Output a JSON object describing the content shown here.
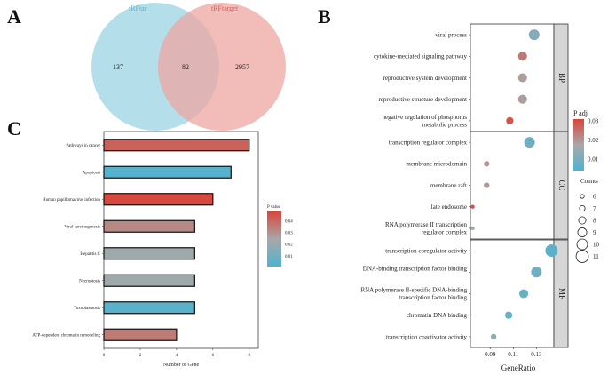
{
  "panels": {
    "a": "A",
    "b": "B",
    "c": "C"
  },
  "venn": {
    "left_label": "tRFtar",
    "right_label": "tRFtarget",
    "left_only": "137",
    "overlap": "82",
    "right_only": "2957",
    "colors": {
      "left": "#a7d8e6",
      "right": "#eea6a2",
      "left_text": "#5ab4d0",
      "right_text": "#d0625e"
    }
  },
  "chart_data": [
    {
      "id": "C",
      "type": "bar",
      "orientation": "horizontal",
      "categories": [
        "Pathways in cancer",
        "Apoptosis",
        "Human papillomavirus infection",
        "Viral carcinogenesis",
        "Hepatitis C",
        "Necroptosis",
        "Toxoplasmosis",
        "ATP-dependent chromatin remodeling"
      ],
      "values": [
        8,
        7,
        6,
        5,
        5,
        5,
        5,
        4
      ],
      "pvalues": [
        0.041,
        0.003,
        0.047,
        0.032,
        0.022,
        0.022,
        0.004,
        0.035
      ],
      "xlabel": "Number of Gene",
      "xlim": [
        0,
        8.5
      ],
      "xticks": [
        "0",
        "2",
        "4",
        "6",
        "8"
      ],
      "legend_title": "P value",
      "legend_ticks": [
        "0.04",
        "0.03",
        "0.02",
        "0.01"
      ],
      "legend_range": [
        0.001,
        0.048
      ]
    },
    {
      "id": "B",
      "type": "scatter",
      "xlabel": "GeneRatio",
      "xticks": [
        "0.09",
        "0.11",
        "0.13"
      ],
      "xlim": [
        0.073,
        0.145
      ],
      "facets": [
        {
          "name": "BP",
          "points": [
            {
              "term": "viral process",
              "x": 0.128,
              "count": 10,
              "padj": 0.012
            },
            {
              "term": "cytokine-mediated signaling pathway",
              "x": 0.118,
              "count": 9,
              "padj": 0.024
            },
            {
              "term": "reproductive system development",
              "x": 0.118,
              "count": 9,
              "padj": 0.019
            },
            {
              "term": "reproductive structure development",
              "x": 0.118,
              "count": 9,
              "padj": 0.019
            },
            {
              "term": "negative regulation of phosphorus metabolic process",
              "x": 0.107,
              "count": 8,
              "padj": 0.029
            }
          ]
        },
        {
          "name": "CC",
          "points": [
            {
              "term": "transcription regulator complex",
              "x": 0.124,
              "count": 10,
              "padj": 0.009
            },
            {
              "term": "membrane microdomain",
              "x": 0.087,
              "count": 7,
              "padj": 0.02
            },
            {
              "term": "membrane raft",
              "x": 0.087,
              "count": 7,
              "padj": 0.02
            },
            {
              "term": "late endosome",
              "x": 0.075,
              "count": 6,
              "padj": 0.029
            },
            {
              "term": "RNA polymerase II transcription regulator complex",
              "x": 0.075,
              "count": 6,
              "padj": 0.016
            }
          ]
        },
        {
          "name": "MF",
          "points": [
            {
              "term": "transcription coregulator activity",
              "x": 0.143,
              "count": 11,
              "padj": 0.006
            },
            {
              "term": "DNA-binding transcription factor binding",
              "x": 0.13,
              "count": 10,
              "padj": 0.009
            },
            {
              "term": "RNA polymerase II-specific DNA-binding transcription factor binding",
              "x": 0.119,
              "count": 9,
              "padj": 0.008
            },
            {
              "term": "chromatin DNA binding",
              "x": 0.106,
              "count": 8,
              "padj": 0.007
            },
            {
              "term": "transcription coactivator activity",
              "x": 0.093,
              "count": 7,
              "padj": 0.013
            }
          ]
        }
      ],
      "color_legend_title": "P adj",
      "color_legend_ticks": [
        "0.03",
        "0.02",
        "0.01"
      ],
      "color_range": [
        0.004,
        0.031
      ],
      "size_legend_title": "Counts",
      "size_legend_values": [
        "6",
        "7",
        "8",
        "9",
        "10",
        "11"
      ]
    }
  ]
}
